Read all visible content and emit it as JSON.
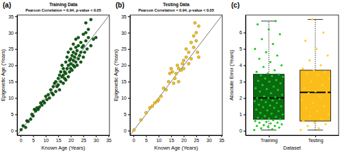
{
  "chart_data": [
    {
      "type": "scatter",
      "annotation": "(a)",
      "title": "Training Data",
      "subtitle": "Pearson Correlation = 0.94, p-value < 0.05",
      "x_label": "Known Age (Years)",
      "y_label": "Epigenetic Age (Years)",
      "color": "#0d5c12",
      "x": [
        0.2,
        1,
        2,
        2.5,
        3,
        4,
        4.5,
        5,
        5.5,
        6,
        6.5,
        7,
        7.5,
        8,
        8.5,
        9,
        9.5,
        10,
        10.5,
        11,
        11.5,
        12,
        12.5,
        13,
        13,
        13.5,
        14,
        14,
        14.5,
        15,
        15,
        15.5,
        15.5,
        16,
        16,
        16.5,
        16.5,
        17,
        17,
        17,
        17.5,
        17.5,
        18,
        18,
        18,
        18.5,
        18.5,
        19,
        19,
        19,
        19.5,
        19.5,
        20,
        20,
        20,
        20,
        20.5,
        20.5,
        21,
        21,
        21,
        21,
        21.5,
        21.5,
        22,
        22,
        22,
        22,
        22.5,
        22.5,
        23,
        23,
        23,
        23.5,
        24,
        24,
        24,
        24.5,
        25,
        25,
        25,
        25.5,
        26,
        26,
        26.5,
        27,
        27,
        28,
        28,
        29,
        30,
        26
      ],
      "values": [
        0.3,
        1.5,
        1,
        3,
        2.8,
        3.5,
        5,
        4.5,
        6.5,
        6,
        7,
        6.5,
        7.2,
        8.5,
        7.8,
        9,
        8.5,
        10.5,
        9.5,
        11,
        10,
        12.5,
        11.5,
        13.5,
        11,
        14.5,
        12,
        15,
        13.5,
        16,
        14,
        12.5,
        17,
        15,
        18,
        16.5,
        20,
        14.5,
        17,
        19,
        16,
        18,
        15.5,
        21,
        17.5,
        19,
        22.5,
        16.5,
        20,
        24,
        18,
        21.5,
        19,
        20.5,
        22,
        25,
        18.5,
        23,
        20,
        21.5,
        24,
        26.5,
        19.5,
        22.5,
        21,
        23.5,
        25.5,
        28,
        20,
        24.5,
        22,
        26,
        28.5,
        23,
        21,
        24,
        27,
        25.5,
        22.5,
        26,
        29.5,
        24,
        27.5,
        30,
        25,
        31,
        28.5,
        34,
        26,
        28,
        28.5,
        33
      ],
      "reference_line": {
        "x": [
          -1.4,
          35.4
        ],
        "values": [
          -1.4,
          35.4
        ]
      },
      "xlim": [
        -1.4,
        35.4
      ],
      "ylim": [
        -1.4,
        35.4
      ],
      "xticks": [
        0,
        5,
        10,
        15,
        20,
        25,
        30,
        35
      ],
      "yticks": [
        0,
        5,
        10,
        15,
        20,
        25,
        30,
        35
      ]
    },
    {
      "type": "scatter",
      "annotation": "(b)",
      "title": "Testing Data",
      "subtitle": "Pearson Correlation = 0.94, p-value < 0.05",
      "x_label": "Known Age (Years)",
      "y_label": "Epigenetic Age (Years)",
      "color": "#f7c21e",
      "x": [
        0.2,
        3,
        5,
        6.5,
        7.5,
        8.5,
        9.5,
        10,
        11,
        12,
        13,
        14,
        14.5,
        15,
        15.5,
        16,
        16.5,
        17,
        17.5,
        18,
        18,
        19,
        19.5,
        20,
        20,
        21,
        21,
        22,
        22,
        23,
        23,
        24,
        24,
        24.5,
        25,
        25,
        25.5,
        26,
        26
      ],
      "values": [
        0.2,
        3.3,
        5.5,
        7,
        7.5,
        8.5,
        9,
        9.5,
        10.5,
        13,
        12.5,
        15,
        17.5,
        19,
        18,
        14.5,
        16,
        17.5,
        20,
        15,
        19,
        18.5,
        20.5,
        19,
        21.5,
        22.5,
        25,
        24,
        20.5,
        22,
        27,
        25.5,
        29,
        33,
        30,
        27.5,
        24,
        32,
        22.5
      ],
      "reference_line": {
        "x": [
          -1.4,
          35.4
        ],
        "values": [
          -1.4,
          35.4
        ]
      },
      "xlim": [
        -1.4,
        35.4
      ],
      "ylim": [
        -1.4,
        35.4
      ],
      "xticks": [
        0,
        5,
        10,
        15,
        20,
        25,
        30,
        35
      ],
      "yticks": [
        0,
        5,
        10,
        15,
        20,
        25,
        30,
        35
      ]
    },
    {
      "type": "box",
      "annotation": "(c)",
      "x_label": "Dataset",
      "y_label": "Absolute Error (Years)",
      "categories": [
        "Training",
        "Testing"
      ],
      "colors": [
        "#0c6b10",
        "#fbbd1c"
      ],
      "line_style": "dotted",
      "boxes": [
        {
          "min": 0.05,
          "q1": 0.7,
          "median": 2.0,
          "q3": 3.45,
          "max": 6.7
        },
        {
          "min": 0.05,
          "q1": 0.6,
          "median": 2.35,
          "q3": 3.7,
          "max": 6.8
        }
      ],
      "points": [
        [
          0.05,
          0.1,
          0.15,
          0.2,
          0.25,
          0.3,
          0.3,
          0.35,
          0.4,
          0.45,
          0.5,
          0.5,
          0.55,
          0.6,
          0.65,
          0.7,
          0.7,
          0.75,
          0.8,
          0.85,
          0.9,
          1.0,
          1.05,
          1.1,
          1.2,
          1.25,
          1.3,
          1.4,
          1.45,
          1.5,
          1.55,
          1.6,
          1.7,
          1.75,
          1.8,
          1.85,
          1.9,
          1.95,
          2.0,
          2.0,
          2.05,
          2.1,
          2.2,
          2.3,
          2.4,
          2.5,
          2.55,
          2.6,
          2.7,
          2.8,
          2.9,
          3.0,
          3.05,
          3.1,
          3.2,
          3.3,
          3.35,
          3.4,
          3.45,
          3.5,
          3.6,
          3.7,
          3.9,
          4.0,
          4.2,
          4.4,
          4.6,
          4.8,
          5.0,
          5.3,
          5.6,
          5.9,
          6.2,
          6.5,
          6.7
        ],
        [
          0.05,
          0.15,
          0.3,
          0.4,
          0.5,
          0.6,
          0.7,
          0.9,
          1.0,
          1.2,
          1.4,
          1.5,
          1.7,
          1.9,
          2.1,
          2.3,
          2.35,
          2.4,
          2.6,
          2.8,
          3.0,
          3.2,
          3.4,
          3.5,
          3.6,
          3.7,
          3.8,
          4.0,
          4.3,
          4.6,
          5.0,
          5.5,
          6.0,
          6.8
        ]
      ],
      "ylim": [
        -0.27,
        7.07
      ],
      "yticks": [
        0,
        1,
        2,
        3,
        4,
        5,
        6
      ]
    }
  ]
}
